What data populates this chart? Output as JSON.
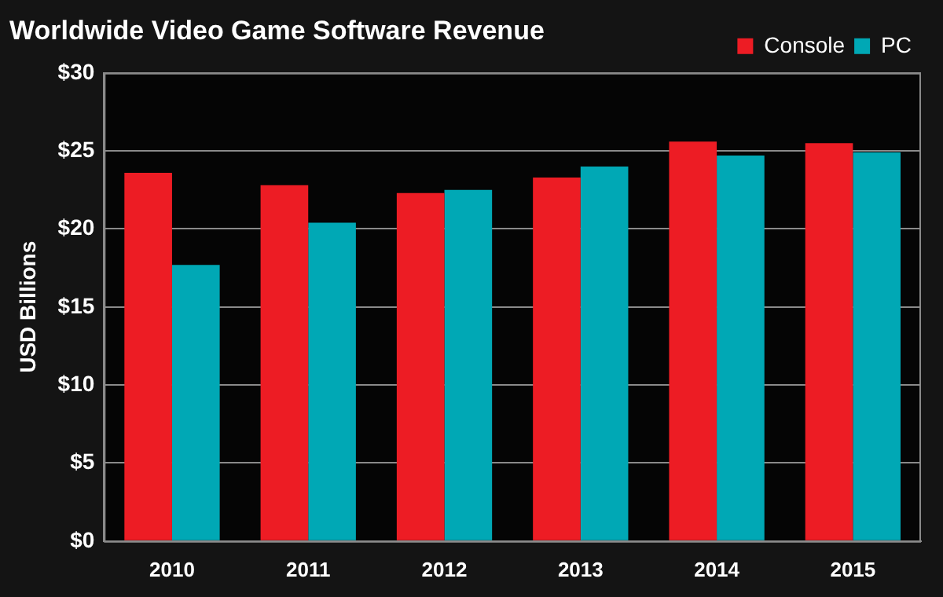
{
  "chart_data": {
    "type": "bar",
    "title": "Worldwide Video Game Software Revenue",
    "ylabel": "USD Billions",
    "categories": [
      "2010",
      "2011",
      "2012",
      "2013",
      "2014",
      "2015"
    ],
    "series": [
      {
        "name": "Console",
        "color": "#ed1c24",
        "values": [
          23.6,
          22.8,
          22.3,
          23.3,
          25.6,
          25.5
        ]
      },
      {
        "name": "PC",
        "color": "#00a8b5",
        "values": [
          17.7,
          20.4,
          22.5,
          24.0,
          24.7,
          24.9
        ]
      }
    ],
    "ylim": [
      0,
      30
    ],
    "yticks": [
      {
        "value": 0,
        "label": "$0"
      },
      {
        "value": 5,
        "label": "$5"
      },
      {
        "value": 10,
        "label": "$10"
      },
      {
        "value": 15,
        "label": "$15"
      },
      {
        "value": 20,
        "label": "$20"
      },
      {
        "value": 25,
        "label": "$25"
      },
      {
        "value": 30,
        "label": "$30"
      }
    ],
    "grid": "y",
    "legend": "top right"
  }
}
